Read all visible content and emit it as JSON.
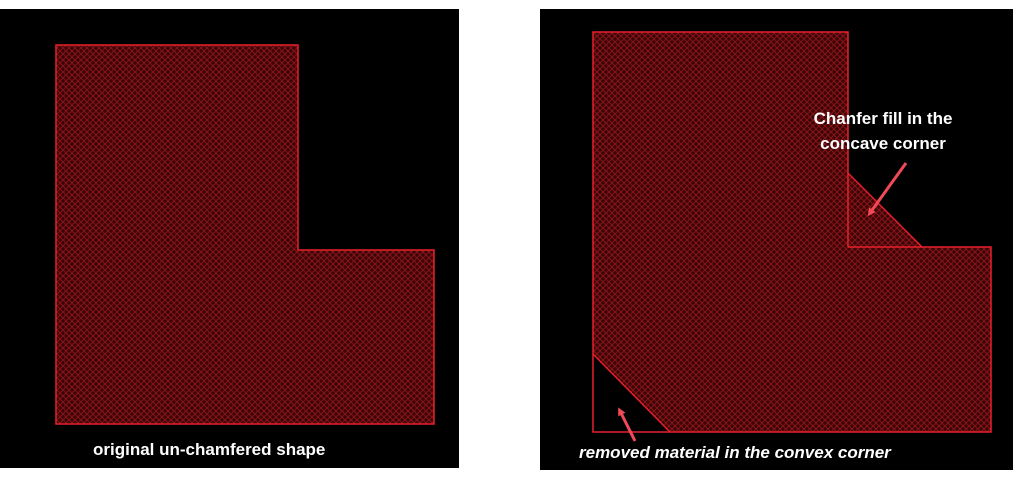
{
  "left_panel": {
    "caption": "original un-chamfered shape"
  },
  "right_panel": {
    "callout_line1": "Chanfer fill in the",
    "callout_line2": "concave corner",
    "caption": "removed material in the convex corner"
  },
  "colors": {
    "background": "#000000",
    "shape_outline": "#e8202a",
    "shape_hatch": "#7a0f14",
    "arrow": "#f04a58",
    "text": "#ffffff"
  }
}
